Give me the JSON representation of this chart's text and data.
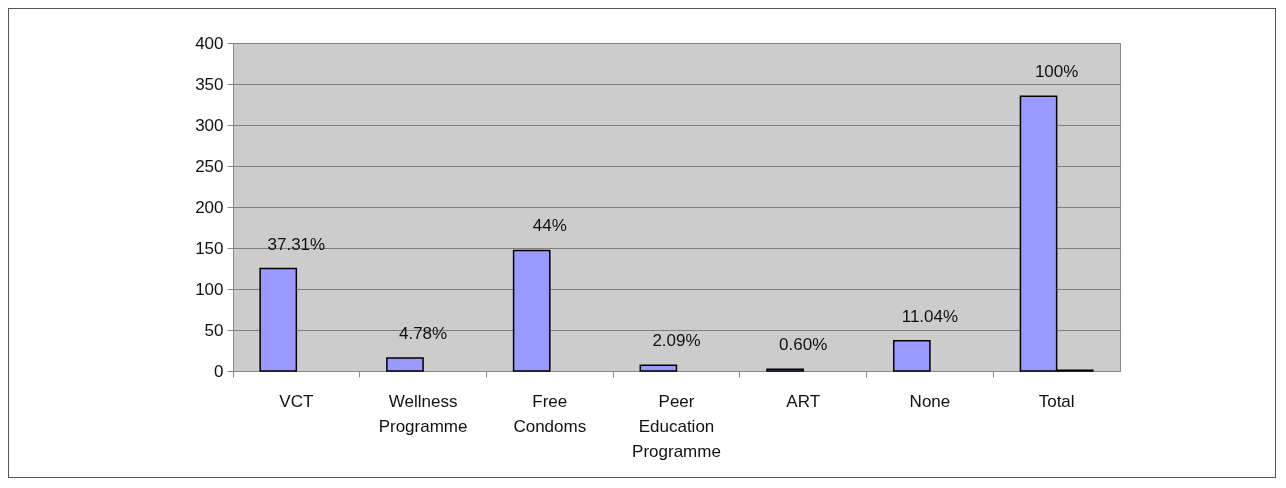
{
  "chart_data": {
    "type": "bar",
    "categories": [
      "VCT",
      "Wellness Programme",
      "Free Condoms",
      "Peer Education Programme",
      "ART",
      "None",
      "Total"
    ],
    "series": [
      {
        "color": "#9999ff",
        "values": [
          125,
          16,
          147,
          7,
          2,
          37,
          335
        ]
      },
      {
        "color": "#000000",
        "values": [
          null,
          null,
          null,
          null,
          null,
          null,
          1
        ]
      }
    ],
    "annotations": [
      {
        "text": "37.31%",
        "x": "VCT",
        "y": 125
      },
      {
        "text": "4.78%",
        "x": "Wellness Programme",
        "y": 16
      },
      {
        "text": "44%",
        "x": "Free Condoms",
        "y": 147
      },
      {
        "text": "2.09%",
        "x": "Peer Education Programme",
        "y": 7
      },
      {
        "text": "0.60%",
        "x": "ART",
        "y": 2
      },
      {
        "text": "11.04%",
        "x": "None",
        "y": 37
      },
      {
        "text": "100%",
        "x": "Total",
        "y": 335
      }
    ],
    "ylim": [
      0,
      400
    ],
    "yticks": [
      0,
      50,
      100,
      150,
      200,
      250,
      300,
      350,
      400
    ],
    "grid": "y",
    "legend": false
  }
}
